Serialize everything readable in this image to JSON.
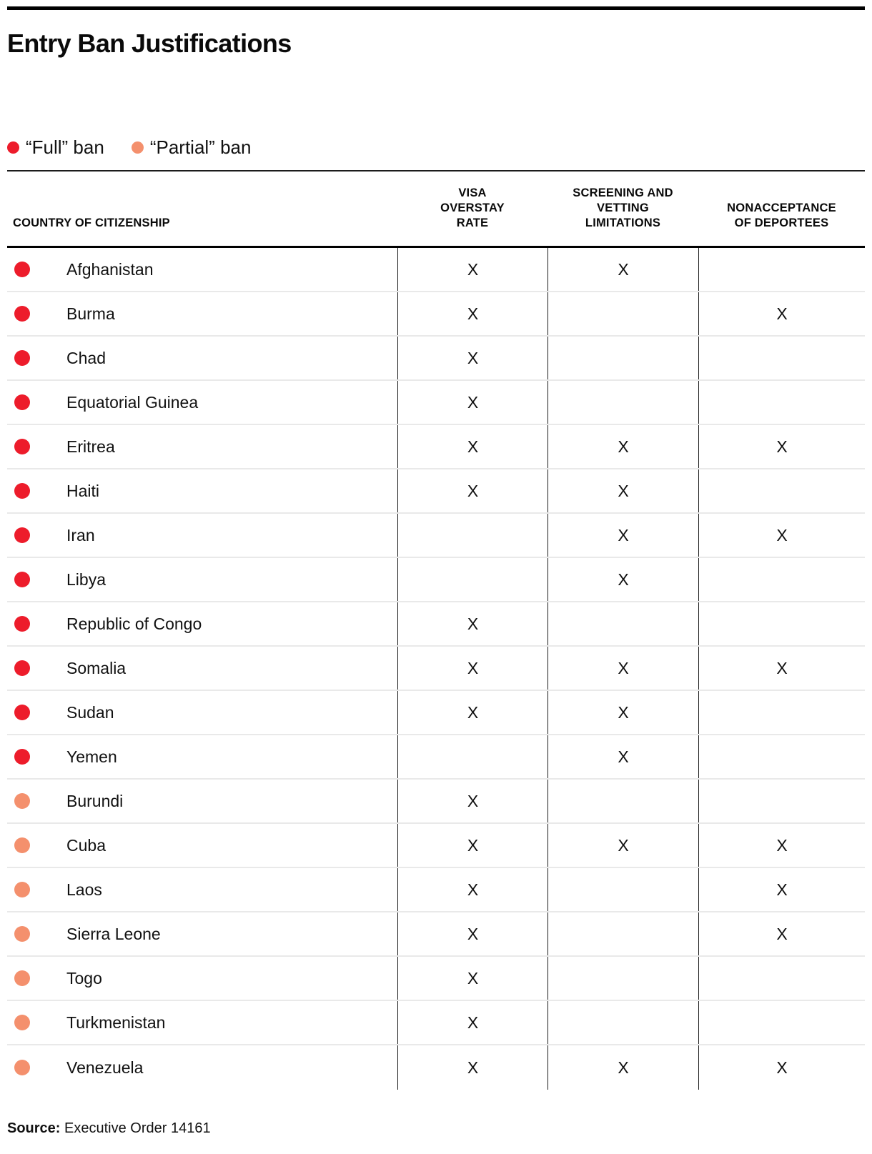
{
  "page": {
    "title": "Entry Ban Justifications",
    "source_label": "Source:",
    "source_text": " Executive Order 14161"
  },
  "colors": {
    "full": "#ed1c2b",
    "partial": "#f4906d",
    "rule_dark": "#1b1b1b",
    "row_divider": "#e9e9e9"
  },
  "legend": {
    "items": [
      {
        "key": "full",
        "label": "“Full” ban"
      },
      {
        "key": "partial",
        "label": "“Partial” ban"
      }
    ]
  },
  "table": {
    "mark": "X",
    "columns": [
      {
        "label": "COUNTRY OF CITIZENSHIP"
      },
      {
        "label": "VISA\nOVERSTAY\nRATE"
      },
      {
        "label": "SCREENING AND\nVETTING\nLIMITATIONS"
      },
      {
        "label": "NONACCEPTANCE\nOF DEPORTEES"
      }
    ]
  },
  "chart_data": {
    "type": "table",
    "title": "Entry Ban Justifications",
    "legend": [
      "“Full” ban",
      "“Partial” ban"
    ],
    "columns": [
      "COUNTRY OF CITIZENSHIP",
      "VISA OVERSTAY RATE",
      "SCREENING AND VETTING LIMITATIONS",
      "NONACCEPTANCE OF DEPORTEES"
    ],
    "rows": [
      {
        "country": "Afghanistan",
        "ban": "full",
        "visa_overstay_rate": true,
        "screening_and_vetting_limitations": true,
        "nonacceptance_of_deportees": false
      },
      {
        "country": "Burma",
        "ban": "full",
        "visa_overstay_rate": true,
        "screening_and_vetting_limitations": false,
        "nonacceptance_of_deportees": true
      },
      {
        "country": "Chad",
        "ban": "full",
        "visa_overstay_rate": true,
        "screening_and_vetting_limitations": false,
        "nonacceptance_of_deportees": false
      },
      {
        "country": "Equatorial Guinea",
        "ban": "full",
        "visa_overstay_rate": true,
        "screening_and_vetting_limitations": false,
        "nonacceptance_of_deportees": false
      },
      {
        "country": "Eritrea",
        "ban": "full",
        "visa_overstay_rate": true,
        "screening_and_vetting_limitations": true,
        "nonacceptance_of_deportees": true
      },
      {
        "country": "Haiti",
        "ban": "full",
        "visa_overstay_rate": true,
        "screening_and_vetting_limitations": true,
        "nonacceptance_of_deportees": false
      },
      {
        "country": "Iran",
        "ban": "full",
        "visa_overstay_rate": false,
        "screening_and_vetting_limitations": true,
        "nonacceptance_of_deportees": true
      },
      {
        "country": "Libya",
        "ban": "full",
        "visa_overstay_rate": false,
        "screening_and_vetting_limitations": true,
        "nonacceptance_of_deportees": false
      },
      {
        "country": "Republic of Congo",
        "ban": "full",
        "visa_overstay_rate": true,
        "screening_and_vetting_limitations": false,
        "nonacceptance_of_deportees": false
      },
      {
        "country": "Somalia",
        "ban": "full",
        "visa_overstay_rate": true,
        "screening_and_vetting_limitations": true,
        "nonacceptance_of_deportees": true
      },
      {
        "country": "Sudan",
        "ban": "full",
        "visa_overstay_rate": true,
        "screening_and_vetting_limitations": true,
        "nonacceptance_of_deportees": false
      },
      {
        "country": "Yemen",
        "ban": "full",
        "visa_overstay_rate": false,
        "screening_and_vetting_limitations": true,
        "nonacceptance_of_deportees": false
      },
      {
        "country": "Burundi",
        "ban": "partial",
        "visa_overstay_rate": true,
        "screening_and_vetting_limitations": false,
        "nonacceptance_of_deportees": false
      },
      {
        "country": "Cuba",
        "ban": "partial",
        "visa_overstay_rate": true,
        "screening_and_vetting_limitations": true,
        "nonacceptance_of_deportees": true
      },
      {
        "country": "Laos",
        "ban": "partial",
        "visa_overstay_rate": true,
        "screening_and_vetting_limitations": false,
        "nonacceptance_of_deportees": true
      },
      {
        "country": "Sierra Leone",
        "ban": "partial",
        "visa_overstay_rate": true,
        "screening_and_vetting_limitations": false,
        "nonacceptance_of_deportees": true
      },
      {
        "country": "Togo",
        "ban": "partial",
        "visa_overstay_rate": true,
        "screening_and_vetting_limitations": false,
        "nonacceptance_of_deportees": false
      },
      {
        "country": "Turkmenistan",
        "ban": "partial",
        "visa_overstay_rate": true,
        "screening_and_vetting_limitations": false,
        "nonacceptance_of_deportees": false
      },
      {
        "country": "Venezuela",
        "ban": "partial",
        "visa_overstay_rate": true,
        "screening_and_vetting_limitations": true,
        "nonacceptance_of_deportees": true
      }
    ],
    "source": "Executive Order 14161"
  }
}
